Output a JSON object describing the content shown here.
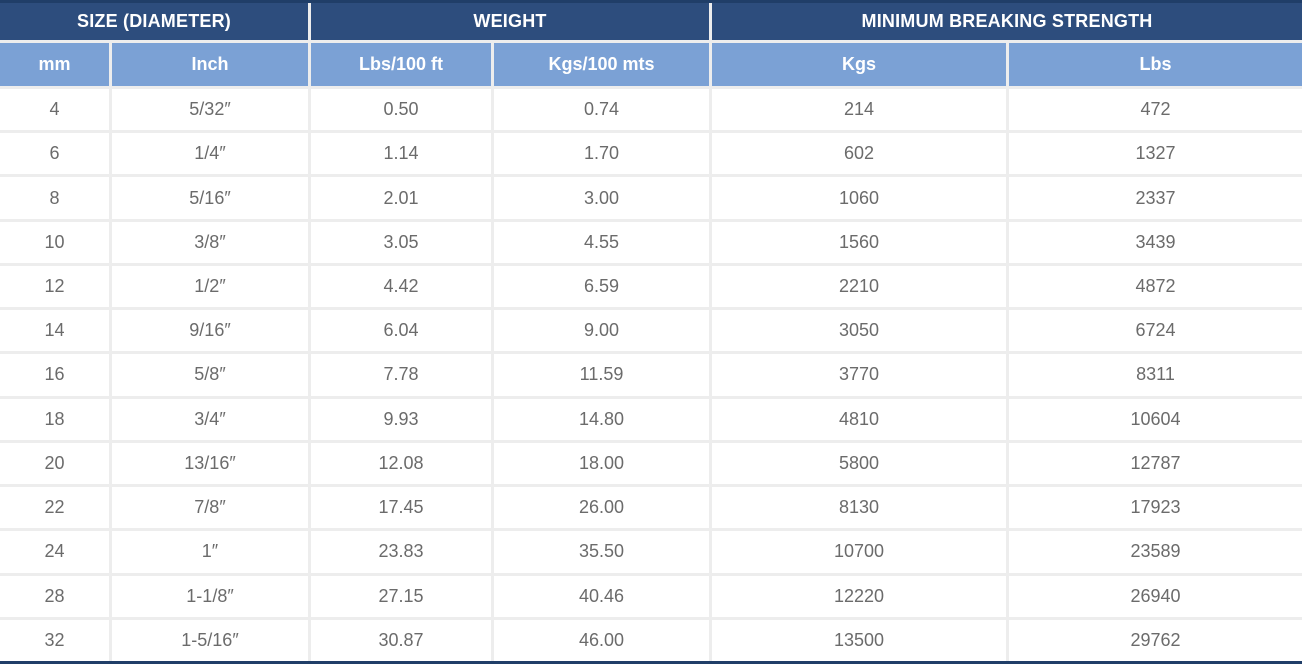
{
  "chart_data": {
    "type": "table",
    "column_groups": [
      {
        "label": "SIZE (DIAMETER)",
        "span": 2
      },
      {
        "label": "WEIGHT",
        "span": 2
      },
      {
        "label": "MINIMUM BREAKING STRENGTH",
        "span": 2
      }
    ],
    "columns": [
      "mm",
      "Inch",
      "Lbs/100 ft",
      "Kgs/100 mts",
      "Kgs",
      "Lbs"
    ],
    "rows": [
      [
        "4",
        "5/32″",
        "0.50",
        "0.74",
        "214",
        "472"
      ],
      [
        "6",
        "1/4″",
        "1.14",
        "1.70",
        "602",
        "1327"
      ],
      [
        "8",
        "5/16″",
        "2.01",
        "3.00",
        "1060",
        "2337"
      ],
      [
        "10",
        "3/8″",
        "3.05",
        "4.55",
        "1560",
        "3439"
      ],
      [
        "12",
        "1/2″",
        "4.42",
        "6.59",
        "2210",
        "4872"
      ],
      [
        "14",
        "9/16″",
        "6.04",
        "9.00",
        "3050",
        "6724"
      ],
      [
        "16",
        "5/8″",
        "7.78",
        "11.59",
        "3770",
        "8311"
      ],
      [
        "18",
        "3/4″",
        "9.93",
        "14.80",
        "4810",
        "10604"
      ],
      [
        "20",
        "13/16″",
        "12.08",
        "18.00",
        "5800",
        "12787"
      ],
      [
        "22",
        "7/8″",
        "17.45",
        "26.00",
        "8130",
        "17923"
      ],
      [
        "24",
        "1″",
        "23.83",
        "35.50",
        "10700",
        "23589"
      ],
      [
        "28",
        "1-1/8″",
        "27.15",
        "40.46",
        "12220",
        "26940"
      ],
      [
        "32",
        "1-5/16″",
        "30.87",
        "46.00",
        "13500",
        "29762"
      ]
    ],
    "layout_hints": {
      "grid": "on",
      "header_rows": 2
    }
  },
  "colors": {
    "group_header_bg": "#2d4d7d",
    "column_header_bg": "#7ba1d5",
    "outer_border": "#203e68",
    "header_text": "#ffffff",
    "body_text": "#6b6b6b",
    "cell_bg": "#ffffff",
    "separator": "#ededed"
  }
}
